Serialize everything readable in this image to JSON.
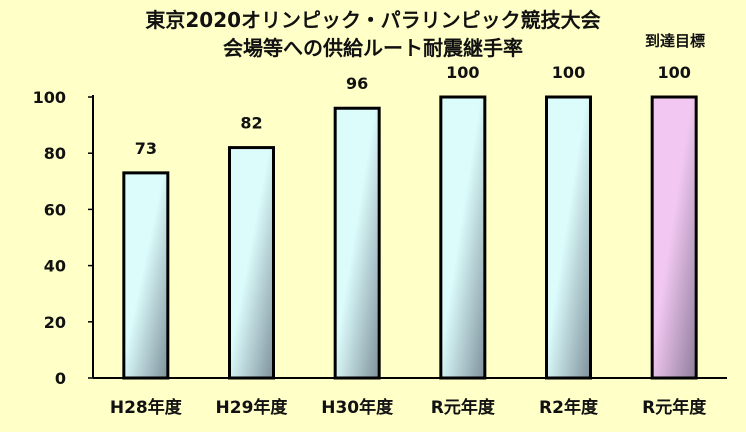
{
  "chart_data": {
    "type": "bar",
    "title_line1": "東京2020オリンピック・パラリンピック競技大会",
    "title_line2": "会場等への供給ルート耐震継手率",
    "annotation": "到達目標",
    "categories": [
      "H28年度",
      "H29年度",
      "H30年度",
      "R元年度",
      "R2年度",
      "R元年度"
    ],
    "values": [
      73,
      82,
      96,
      100,
      100,
      100
    ],
    "value_labels": [
      "73",
      "82",
      "96",
      "100",
      "100",
      "100"
    ],
    "highlight_index": 5,
    "ylim": [
      0,
      100
    ],
    "yticks": [
      "0",
      "20",
      "40",
      "60",
      "80",
      "100"
    ],
    "grid": false,
    "colors": {
      "background": "#ffffc8",
      "bar_light": "#dcfcfc",
      "bar_dark": "#7e919c",
      "target_light": "#f2c8f2",
      "target_dark": "#8f7d9b",
      "axis": "#000000"
    }
  }
}
